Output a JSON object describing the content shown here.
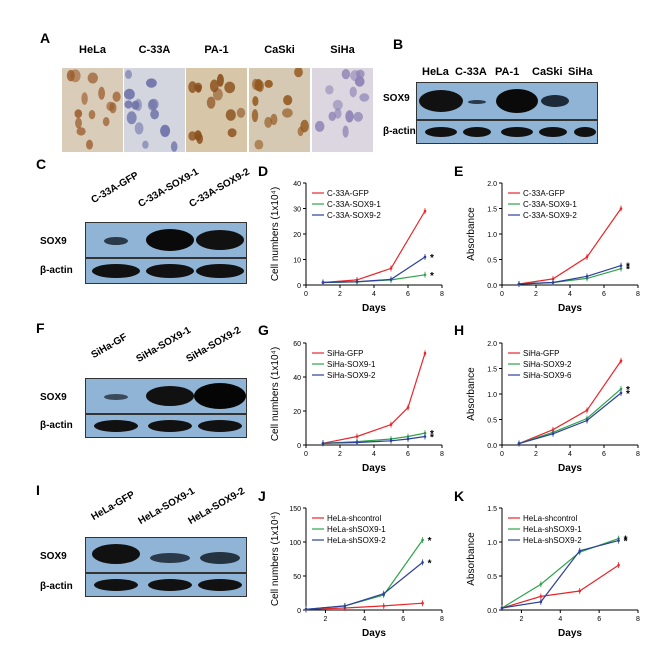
{
  "panels": {
    "A": "A",
    "B": "B",
    "C": "C",
    "D": "D",
    "E": "E",
    "F": "F",
    "G": "G",
    "H": "H",
    "I": "I",
    "J": "J",
    "K": "K"
  },
  "micrographs": [
    {
      "label": "HeLa",
      "base": "#d9ccb8",
      "stain": "#9b5a2a"
    },
    {
      "label": "C-33A",
      "base": "#d3d5df",
      "stain": "#6e72a8"
    },
    {
      "label": "PA-1",
      "base": "#d8c6a8",
      "stain": "#8a4f1c"
    },
    {
      "label": "CaSki",
      "base": "#d5c9b4",
      "stain": "#94591f"
    },
    {
      "label": "SiHa",
      "base": "#dcd6e0",
      "stain": "#8c82b4"
    }
  ],
  "blots": {
    "B": {
      "lanes": [
        "HeLa",
        "C-33A",
        "PA-1",
        "CaSki",
        "SiHa"
      ],
      "rows": [
        "SOX9",
        "β-actin"
      ]
    },
    "C": {
      "lanes": [
        "C-33A-GFP",
        "C-33A-SOX9-1",
        "C-33A-SOX9-2"
      ],
      "rows": [
        "SOX9",
        "β-actin"
      ]
    },
    "F": {
      "lanes": [
        "SiHa-GF",
        "SiHa-SOX9-1",
        "SiHa-SOX9-2"
      ],
      "rows": [
        "SOX9",
        "β-actin"
      ]
    },
    "I": {
      "lanes": [
        "HeLa-GFP",
        "HeLa-SOX9-1",
        "HeLa-SOX9-2"
      ],
      "rows": [
        "SOX9",
        "β-actin"
      ]
    }
  },
  "chart_data": [
    {
      "panel": "D",
      "type": "line",
      "xlabel": "Days",
      "ylabel": "Cell numbers (1x10⁴)",
      "xlim": [
        0,
        8
      ],
      "ylim": [
        0,
        40
      ],
      "xticks": [
        0,
        2,
        4,
        6,
        8
      ],
      "yticks": [
        0,
        10,
        20,
        30,
        40
      ],
      "x": [
        1,
        3,
        5,
        7
      ],
      "series": [
        {
          "name": "C-33A-GFP",
          "color": "#e8262b",
          "values": [
            1,
            2,
            6.5,
            29
          ]
        },
        {
          "name": "C-33A-SOX9-1",
          "color": "#2da44a",
          "values": [
            1,
            1.2,
            2,
            4
          ]
        },
        {
          "name": "C-33A-SOX9-2",
          "color": "#2c3f9c",
          "values": [
            1,
            1.3,
            2.2,
            11
          ]
        }
      ],
      "stars": [
        "*",
        "*"
      ]
    },
    {
      "panel": "E",
      "type": "line",
      "xlabel": "Days",
      "ylabel": "Absorbance",
      "xlim": [
        0,
        8
      ],
      "ylim": [
        0,
        2.0
      ],
      "xticks": [
        0,
        2,
        4,
        6,
        8
      ],
      "yticks": [
        "0.0",
        "0.5",
        "1.0",
        "1.5",
        "2.0"
      ],
      "x": [
        1,
        3,
        5,
        7
      ],
      "series": [
        {
          "name": "C-33A-GFP",
          "color": "#e8262b",
          "values": [
            0.02,
            0.12,
            0.55,
            1.5
          ]
        },
        {
          "name": "C-33A-SOX9-1",
          "color": "#2da44a",
          "values": [
            0.02,
            0.05,
            0.13,
            0.32
          ]
        },
        {
          "name": "C-33A-SOX9-2",
          "color": "#2c3f9c",
          "values": [
            0.02,
            0.05,
            0.17,
            0.38
          ]
        }
      ],
      "stars": [
        "*",
        "*"
      ]
    },
    {
      "panel": "G",
      "type": "line",
      "xlabel": "Days",
      "ylabel": "Cell numbers (1x10⁴)",
      "xlim": [
        0,
        8
      ],
      "ylim": [
        0,
        60
      ],
      "xticks": [
        0,
        2,
        4,
        6,
        8
      ],
      "yticks": [
        0,
        20,
        40,
        60
      ],
      "x": [
        1,
        3,
        5,
        6,
        7
      ],
      "series": [
        {
          "name": "SiHa-GFP",
          "color": "#e8262b",
          "values": [
            1,
            5,
            12,
            22,
            54
          ]
        },
        {
          "name": "SiHa-SOX9-1",
          "color": "#2da44a",
          "values": [
            1,
            2,
            3.5,
            5,
            7
          ]
        },
        {
          "name": "SiHa-SOX9-2",
          "color": "#2c3f9c",
          "values": [
            1,
            1.5,
            2.5,
            3.5,
            5
          ]
        }
      ],
      "stars": [
        "*",
        "*"
      ]
    },
    {
      "panel": "H",
      "type": "line",
      "xlabel": "Days",
      "ylabel": "Absorbance",
      "xlim": [
        0,
        8
      ],
      "ylim": [
        0,
        2.0
      ],
      "xticks": [
        0,
        2,
        4,
        6,
        8
      ],
      "yticks": [
        "0.0",
        "0.5",
        "1.0",
        "1.5",
        "2.0"
      ],
      "x": [
        1,
        3,
        5,
        7
      ],
      "series": [
        {
          "name": "SiHa-GFP",
          "color": "#e8262b",
          "values": [
            0.03,
            0.3,
            0.68,
            1.65
          ]
        },
        {
          "name": "SiHa-SOX9-2",
          "color": "#2da44a",
          "values": [
            0.03,
            0.25,
            0.52,
            1.1
          ]
        },
        {
          "name": "SiHa-SOX9-6",
          "color": "#2c3f9c",
          "values": [
            0.03,
            0.22,
            0.48,
            1.02
          ]
        }
      ],
      "stars": [
        "*",
        "*"
      ]
    },
    {
      "panel": "J",
      "type": "line",
      "xlabel": "Days",
      "ylabel": "Cell numbers (1x10⁴)",
      "xlim": [
        1,
        8
      ],
      "ylim": [
        0,
        150
      ],
      "xticks": [
        2,
        4,
        6,
        8
      ],
      "yticks": [
        0,
        50,
        100,
        150
      ],
      "x": [
        1,
        3,
        5,
        7
      ],
      "series": [
        {
          "name": "HeLa-shcontrol",
          "color": "#e8262b",
          "values": [
            1,
            3,
            6,
            10
          ]
        },
        {
          "name": "HeLa-shSOX9-1",
          "color": "#2da44a",
          "values": [
            1,
            6,
            22,
            103
          ]
        },
        {
          "name": "HeLa-shSOX9-2",
          "color": "#2c3f9c",
          "values": [
            1,
            6,
            24,
            70
          ]
        }
      ],
      "stars": [
        "*",
        "*"
      ]
    },
    {
      "panel": "K",
      "type": "line",
      "xlabel": "Days",
      "ylabel": "Absorbance",
      "xlim": [
        1,
        8
      ],
      "ylim": [
        0,
        1.5
      ],
      "xticks": [
        2,
        4,
        6,
        8
      ],
      "yticks": [
        "0.0",
        "0.5",
        "1.0",
        "1.5"
      ],
      "x": [
        1,
        3,
        5,
        7
      ],
      "series": [
        {
          "name": "HeLa-shcontrol",
          "color": "#e8262b",
          "values": [
            0.03,
            0.2,
            0.28,
            0.66
          ]
        },
        {
          "name": "HeLa-shSOX9-1",
          "color": "#2da44a",
          "values": [
            0.03,
            0.38,
            0.85,
            1.05
          ]
        },
        {
          "name": "HeLa-shSOX9-2",
          "color": "#2c3f9c",
          "values": [
            0.03,
            0.12,
            0.87,
            1.02
          ]
        }
      ],
      "stars": [
        "*",
        "*"
      ]
    }
  ]
}
